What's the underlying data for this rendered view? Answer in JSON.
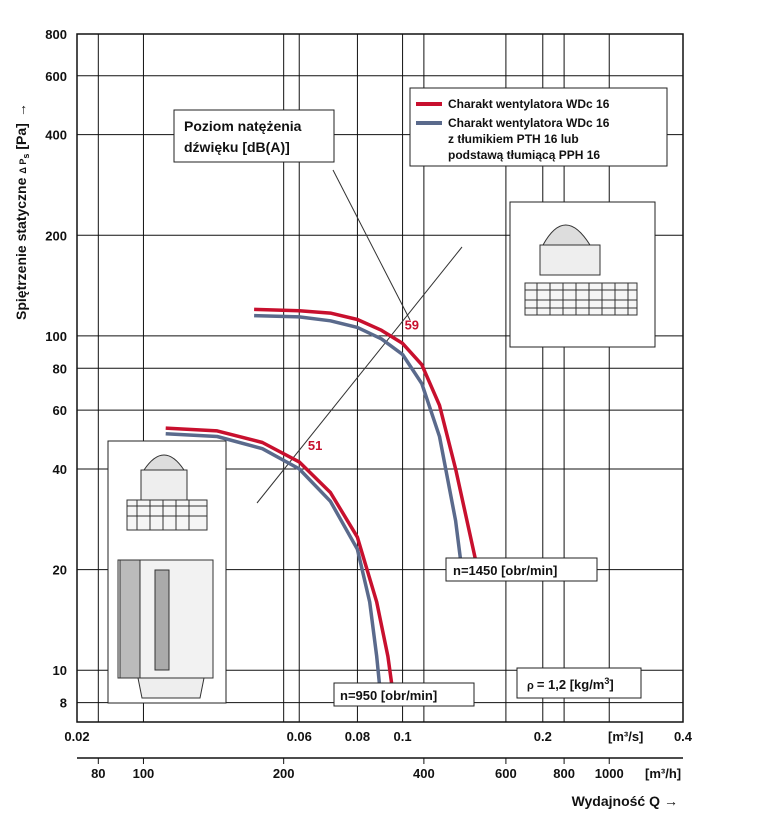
{
  "chart_data": {
    "type": "line",
    "title": "",
    "ylabel": "Spiętrzenie statyczne",
    "ylabel_symbol": "Δ P",
    "ylabel_sub": "s",
    "ylabel_unit": "[Pa]",
    "xlabel": "Wydajność Q",
    "x_unit_top": "[m³/s]",
    "x_unit_bottom": "[m³/h]",
    "x_scale": "log",
    "y_scale": "log",
    "xlim_m3s": [
      0.02,
      0.4
    ],
    "ylim": [
      7,
      800
    ],
    "y_ticks": [
      800,
      600,
      400,
      200,
      100,
      80,
      60,
      40,
      20,
      10,
      8
    ],
    "y_tick_labels": [
      "800",
      "600",
      "400",
      "200",
      "100",
      "80",
      "60",
      "40",
      "20",
      "10",
      "8"
    ],
    "x_ticks_top": [
      0.02,
      0.06,
      0.08,
      0.1,
      0.2,
      0.4
    ],
    "x_tick_labels_top": [
      "0.02",
      "0.06",
      "0.08",
      "0.1",
      "0.2",
      "0.4"
    ],
    "x_ticks_bottom_m3h": [
      80,
      100,
      200,
      400,
      600,
      800,
      1000
    ],
    "x_tick_labels_bottom": [
      "80",
      "100",
      "200",
      "400",
      "600",
      "800",
      "1000"
    ],
    "legend": [
      {
        "color": "#c8102e",
        "lines": [
          "Charakt wentylatora WDc 16"
        ]
      },
      {
        "color": "#5a6a8c",
        "lines": [
          "Charakt wentylatora WDc 16",
          "z tłumikiem PTH 16 lub",
          "podstawą tłumiącą PPH 16"
        ]
      }
    ],
    "legend_position": "top-right",
    "noise_label_lines": [
      "Poziom natężenia",
      "dźwięku [dB(A)]"
    ],
    "density_symbol": "ρ",
    "density_label": "= 1,2 [kg/m",
    "density_sup": "3",
    "density_close": "]",
    "series": [
      {
        "name": "Charakt wentylatora WDc 16",
        "rpm_label": "n=1450 [obr/min]",
        "color": "#c8102e",
        "points": [
          [
            0.048,
            120
          ],
          [
            0.06,
            119
          ],
          [
            0.07,
            117
          ],
          [
            0.08,
            112
          ],
          [
            0.09,
            104
          ],
          [
            0.1,
            95
          ],
          [
            0.11,
            82
          ],
          [
            0.12,
            62
          ],
          [
            0.13,
            40
          ],
          [
            0.14,
            25
          ],
          [
            0.145,
            20
          ]
        ]
      },
      {
        "name": "Charakt wentylatora WDc 16 z tłumikiem PTH 16 lub podstawą tłumiącą PPH 16",
        "color": "#5a6a8c",
        "points": [
          [
            0.048,
            115
          ],
          [
            0.06,
            114
          ],
          [
            0.07,
            111
          ],
          [
            0.08,
            106
          ],
          [
            0.09,
            98
          ],
          [
            0.1,
            88
          ],
          [
            0.11,
            72
          ],
          [
            0.12,
            50
          ],
          [
            0.13,
            28
          ],
          [
            0.134,
            20
          ]
        ]
      },
      {
        "name": "Charakt wentylatora WDc 16",
        "rpm_label": "n=950 [obr/min]",
        "color": "#c8102e",
        "points": [
          [
            0.031,
            53
          ],
          [
            0.04,
            52
          ],
          [
            0.05,
            48
          ],
          [
            0.06,
            42
          ],
          [
            0.07,
            34
          ],
          [
            0.08,
            25
          ],
          [
            0.088,
            16
          ],
          [
            0.093,
            11
          ],
          [
            0.096,
            8
          ]
        ]
      },
      {
        "name": "Charakt wentylatora WDc 16 z tłumikiem PTH 16 lub podstawą tłumiącą PPH 16",
        "color": "#5a6a8c",
        "points": [
          [
            0.031,
            51
          ],
          [
            0.04,
            50
          ],
          [
            0.05,
            46
          ],
          [
            0.06,
            40
          ],
          [
            0.07,
            32
          ],
          [
            0.08,
            23
          ],
          [
            0.085,
            16
          ],
          [
            0.088,
            11
          ],
          [
            0.09,
            8
          ]
        ]
      }
    ],
    "noise_markers": [
      {
        "label": "51",
        "x": 0.062,
        "y": 45,
        "color": "#c8102e"
      },
      {
        "label": "59",
        "x": 0.1,
        "y": 103,
        "color": "#c8102e"
      }
    ]
  }
}
